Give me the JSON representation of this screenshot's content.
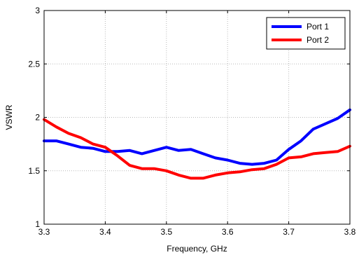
{
  "chart_data": {
    "type": "line",
    "xlabel": "Frequency, GHz",
    "ylabel": "VSWR",
    "xlim": [
      3.3,
      3.8
    ],
    "ylim": [
      1,
      3
    ],
    "xticks": [
      "3.3",
      "3.4",
      "3.5",
      "3.6",
      "3.7",
      "3.8"
    ],
    "yticks": [
      "1",
      "1.5",
      "2",
      "2.5",
      "3"
    ],
    "grid": true,
    "legend_position": "top-right",
    "series": [
      {
        "name": "Port 1",
        "color": "#0000ff",
        "x": [
          3.3,
          3.31,
          3.32,
          3.34,
          3.36,
          3.38,
          3.4,
          3.42,
          3.44,
          3.46,
          3.48,
          3.5,
          3.52,
          3.54,
          3.56,
          3.58,
          3.6,
          3.62,
          3.64,
          3.66,
          3.68,
          3.7,
          3.72,
          3.74,
          3.76,
          3.78,
          3.8
        ],
        "y": [
          1.78,
          1.78,
          1.78,
          1.75,
          1.72,
          1.71,
          1.68,
          1.68,
          1.69,
          1.66,
          1.69,
          1.72,
          1.69,
          1.7,
          1.66,
          1.62,
          1.6,
          1.57,
          1.56,
          1.57,
          1.6,
          1.7,
          1.78,
          1.89,
          1.94,
          1.99,
          2.07
        ]
      },
      {
        "name": "Port 2",
        "color": "#ff0000",
        "x": [
          3.3,
          3.32,
          3.34,
          3.36,
          3.38,
          3.4,
          3.42,
          3.44,
          3.46,
          3.48,
          3.5,
          3.52,
          3.54,
          3.56,
          3.58,
          3.6,
          3.62,
          3.64,
          3.66,
          3.68,
          3.7,
          3.72,
          3.74,
          3.76,
          3.78,
          3.8
        ],
        "y": [
          1.98,
          1.91,
          1.85,
          1.81,
          1.75,
          1.72,
          1.64,
          1.55,
          1.52,
          1.52,
          1.5,
          1.46,
          1.43,
          1.43,
          1.46,
          1.48,
          1.49,
          1.51,
          1.52,
          1.56,
          1.62,
          1.63,
          1.66,
          1.67,
          1.68,
          1.73
        ]
      }
    ]
  }
}
